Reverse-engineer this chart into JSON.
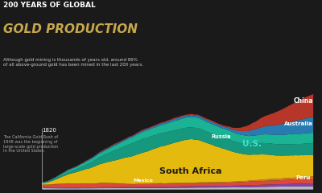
{
  "title_line1": "200 YEARS OF GLOBAL",
  "title_line2": "GOLD PRODUCTION",
  "subtitle": "Although gold mining is thousands of years old, around 86%\nof all above-ground gold has been mined in the last 200 years.",
  "annotation": "The California Gold Rush of\n1848 was the beginning of\nlarge-scale gold production\nin the United States.",
  "year_label": "1820",
  "background_color": "#1a1a1a",
  "text_color": "#ffffff",
  "title1_color": "#ffffff",
  "title2_color": "#c8a84b"
}
